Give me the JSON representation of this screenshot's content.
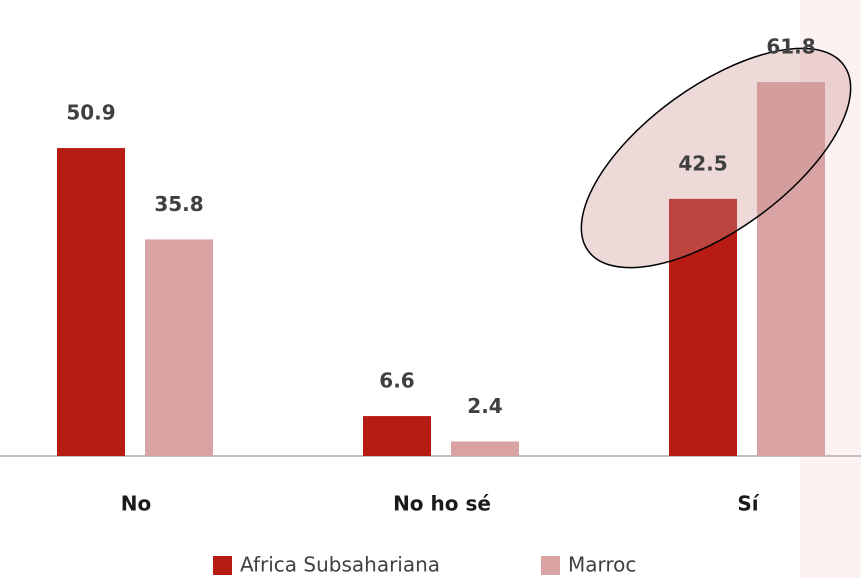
{
  "chart_data": {
    "type": "bar",
    "categories": [
      "No",
      "No ho sé",
      "Sí"
    ],
    "series": [
      {
        "name": "Africa Subsahariana",
        "color": "#b71c14",
        "values": [
          50.9,
          6.6,
          42.5
        ]
      },
      {
        "name": "Marroc",
        "color": "#d9a3a3",
        "values": [
          35.8,
          2.4,
          61.8
        ]
      }
    ],
    "legend": "bottom"
  }
}
